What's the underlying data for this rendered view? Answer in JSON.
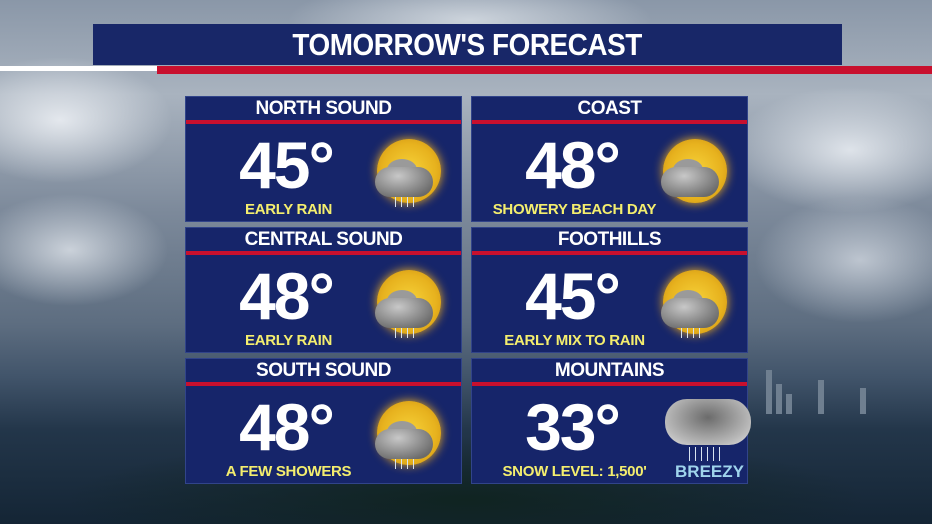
{
  "title": "TOMORROW'S FORECAST",
  "colors": {
    "panel": "#16256a",
    "accent_red": "#c8102e",
    "description_yellow": "#f4ee6e",
    "breezy_blue": "#9fd4ec"
  },
  "regions": [
    {
      "name": "NORTH SOUND",
      "temp": "45°",
      "description": "EARLY RAIN",
      "icon": "partly-sunny-rain-icon"
    },
    {
      "name": "COAST",
      "temp": "48°",
      "description": "SHOWERY BEACH DAY",
      "icon": "partly-sunny-rain-icon"
    },
    {
      "name": "CENTRAL SOUND",
      "temp": "48°",
      "description": "EARLY RAIN",
      "icon": "partly-sunny-rain-icon"
    },
    {
      "name": "FOOTHILLS",
      "temp": "45°",
      "description": "EARLY MIX TO RAIN",
      "icon": "partly-sunny-rain-icon"
    },
    {
      "name": "SOUTH SOUND",
      "temp": "48°",
      "description": "A FEW SHOWERS",
      "icon": "partly-sunny-rain-icon"
    },
    {
      "name": "MOUNTAINS",
      "temp": "33°",
      "description": "SNOW LEVEL:  1,500'",
      "icon": "cloud-snow-icon",
      "note": "BREEZY"
    }
  ]
}
